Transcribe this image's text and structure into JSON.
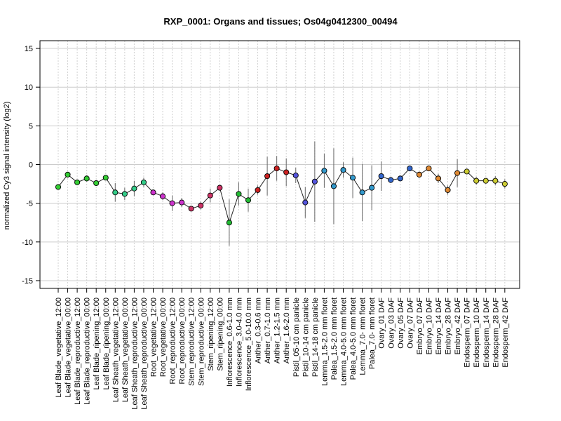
{
  "chart_data": {
    "type": "line",
    "title": "RXP_0001: Organs and tissues; Os04g0412300_00494",
    "xlabel": "",
    "ylabel": "normalized Cy3 signal intensity (log2)",
    "ylim": [
      -16,
      16
    ],
    "yticks": [
      -15,
      -10,
      -5,
      0,
      5,
      10,
      15
    ],
    "grid": "horizontal and vertical dotted",
    "categories": [
      "Leaf Blade_vegetative_12:00",
      "Leaf Blade_vegetative_00:00",
      "Leaf Blade_reproductive_12:00",
      "Leaf Blade_reproductive_00:00",
      "Leaf Blade_ripening_12:00",
      "Leaf Blade_ripening_00:00",
      "Leaf Sheath_vegetative_12:00",
      "Leaf Sheath_vegetative_00:00",
      "Leaf Sheath_reproductive_12:00",
      "Leaf Sheath_reproductive_00:00",
      "Root_vegetative_12:00",
      "Root_vegetative_00:00",
      "Root_reproductive_12:00",
      "Root_reproductive_00:00",
      "Stem_reproductive_12:00",
      "Stem_reproductive_00:00",
      "Stem_ripening_12:00",
      "Stem_ripening_00:00",
      "Inflorescence_0.6-1.0 mm",
      "Inflorescence_3.0-4.0 mm",
      "Inflorescence_5.0-10.0 mm",
      "Anther_0.3-0.6 mm",
      "Anther_0.7-1.0 mm",
      "Anther_1.2-1.5 mm",
      "Anther_1.6-2.0 mm",
      "Pistil_05-10 cm panicle",
      "Pistil_10-14 cm panicle",
      "Pistil_14-18 cm panicle",
      "Lemma_1.5-2.0 mm floret",
      "Palea_1.5-2.0 mm floret",
      "Lemma_4.0-5.0 mm floret",
      "Palea_4.0-5.0 mm floret",
      "Lemma_7.0- mm floret",
      "Palea_7.0- mm floret",
      "Ovary_01 DAF",
      "Ovary_03 DAF",
      "Ovary_05 DAF",
      "Ovary_07 DAF",
      "Embryo_07 DAF",
      "Embryo_10 DAF",
      "Embryo_14 DAF",
      "Embryo_28 DAF",
      "Embryo_42 DAF",
      "Endosperm_07 DAF",
      "Endosperm_10 DAF",
      "Endosperm_14 DAF",
      "Endosperm_28 DAF",
      "Endosperm_42 DAF"
    ],
    "values": [
      -2.9,
      -1.3,
      -2.3,
      -1.8,
      -2.4,
      -1.7,
      -3.6,
      -3.8,
      -3.1,
      -2.3,
      -3.6,
      -4.1,
      -5.0,
      -4.9,
      -5.7,
      -5.3,
      -4.0,
      -3.0,
      -7.5,
      -3.8,
      -4.6,
      -3.3,
      -1.5,
      -0.5,
      -1.0,
      -1.4,
      -4.9,
      -2.2,
      -0.8,
      -2.8,
      -0.7,
      -1.7,
      -3.6,
      -3.0,
      -1.5,
      -2.0,
      -1.8,
      -0.5,
      -1.3,
      -0.5,
      -1.8,
      -3.3,
      -1.1,
      -0.9,
      -2.1,
      -2.1,
      -2.1,
      -2.5
    ],
    "errors": [
      0.2,
      0.2,
      0.2,
      0.4,
      0.2,
      0.3,
      1.2,
      0.8,
      1.0,
      0.6,
      0.2,
      0.5,
      1.0,
      0.6,
      0.3,
      0.5,
      0.9,
      0.3,
      3.0,
      1.5,
      1.5,
      0.6,
      2.5,
      1.6,
      1.8,
      1.0,
      2.0,
      5.2,
      2.2,
      4.9,
      1.0,
      2.6,
      3.7,
      2.9,
      1.9,
      0.4,
      0.3,
      0.2,
      0.4,
      0.3,
      0.6,
      0.6,
      1.8,
      0.3,
      0.5,
      0.3,
      0.6,
      0.6
    ],
    "point_colors": [
      "#33cc33",
      "#33cc33",
      "#33cc33",
      "#33cc33",
      "#33cc33",
      "#33cc33",
      "#33cc88",
      "#33cc88",
      "#33cc88",
      "#33cc88",
      "#cc33cc",
      "#cc33cc",
      "#cc33cc",
      "#cc33cc",
      "#cc3366",
      "#cc3366",
      "#cc3366",
      "#cc3366",
      "#22bb33",
      "#22bb33",
      "#22bb33",
      "#cc2222",
      "#cc2222",
      "#cc2222",
      "#cc2222",
      "#5555dd",
      "#5555dd",
      "#5555dd",
      "#3399cc",
      "#3399cc",
      "#3399cc",
      "#3399cc",
      "#3399cc",
      "#3399cc",
      "#3366cc",
      "#3366cc",
      "#3366cc",
      "#3366cc",
      "#dd8833",
      "#dd8833",
      "#dd8833",
      "#dd8833",
      "#dd8833",
      "#cccc33",
      "#cccc33",
      "#cccc33",
      "#cccc33",
      "#cccc33"
    ]
  }
}
